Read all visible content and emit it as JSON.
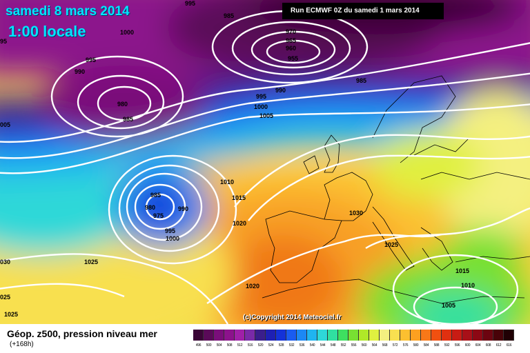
{
  "header": {
    "date": "samedi 8 mars 2014",
    "time": "1:00 locale",
    "run": "Run ECMWF 0Z du samedi 1 mars 2014"
  },
  "footer": {
    "parameter": "Géop. z500, pression niveau mer",
    "lead": "(+168h)",
    "copyright": "(c)Copyright 2014 Meteociel.fr"
  },
  "scale": [
    {
      "label": "496",
      "color": "#3a0536"
    },
    {
      "label": "500",
      "color": "#5a0a58"
    },
    {
      "label": "504",
      "color": "#7a0e7a"
    },
    {
      "label": "508",
      "color": "#8c128c"
    },
    {
      "label": "512",
      "color": "#a020a8"
    },
    {
      "label": "516",
      "color": "#7a2aa8"
    },
    {
      "label": "520",
      "color": "#3a1e8c"
    },
    {
      "label": "524",
      "color": "#1e20b4"
    },
    {
      "label": "528",
      "color": "#1432d8"
    },
    {
      "label": "532",
      "color": "#1a5cf0"
    },
    {
      "label": "536",
      "color": "#1c88f4"
    },
    {
      "label": "540",
      "color": "#20b4f0"
    },
    {
      "label": "544",
      "color": "#2ed8d8"
    },
    {
      "label": "548",
      "color": "#30e0a0"
    },
    {
      "label": "552",
      "color": "#3ee060"
    },
    {
      "label": "556",
      "color": "#78e032"
    },
    {
      "label": "560",
      "color": "#b0e828"
    },
    {
      "label": "564",
      "color": "#e0f040"
    },
    {
      "label": "568",
      "color": "#f4f080"
    },
    {
      "label": "572",
      "color": "#f8e050"
    },
    {
      "label": "576",
      "color": "#fcc030"
    },
    {
      "label": "580",
      "color": "#fca020"
    },
    {
      "label": "584",
      "color": "#f87818"
    },
    {
      "label": "588",
      "color": "#f05010"
    },
    {
      "label": "592",
      "color": "#e03010"
    },
    {
      "label": "596",
      "color": "#c81c14"
    },
    {
      "label": "600",
      "color": "#a81018"
    },
    {
      "label": "604",
      "color": "#8c0814"
    },
    {
      "label": "608",
      "color": "#6c0410"
    },
    {
      "label": "612",
      "color": "#480208"
    },
    {
      "label": "616",
      "color": "#200004"
    }
  ],
  "map_labels": [
    {
      "id": "995-top",
      "text": "995"
    },
    {
      "id": "985-nw",
      "text": "985"
    },
    {
      "id": "1000-nw",
      "text": "1000"
    },
    {
      "id": "995-w",
      "text": "995"
    },
    {
      "id": "990-w",
      "text": "990"
    },
    {
      "id": "95-edge",
      "text": "95"
    },
    {
      "id": "980-low",
      "text": "980"
    },
    {
      "id": "985-low",
      "text": "985"
    },
    {
      "id": "005-edge",
      "text": "005"
    },
    {
      "id": "970",
      "text": "970"
    },
    {
      "id": "965",
      "text": "965"
    },
    {
      "id": "960",
      "text": "960"
    },
    {
      "id": "955",
      "text": "955"
    },
    {
      "id": "985-ne",
      "text": "985"
    },
    {
      "id": "990-c",
      "text": "990"
    },
    {
      "id": "995-c",
      "text": "995"
    },
    {
      "id": "1000-c",
      "text": "1000"
    },
    {
      "id": "1005-c",
      "text": "1005"
    },
    {
      "id": "985-atl",
      "text": "985"
    },
    {
      "id": "980-atl",
      "text": "980"
    },
    {
      "id": "975-atl",
      "text": "975"
    },
    {
      "id": "990-atl",
      "text": "990"
    },
    {
      "id": "995-atl",
      "text": "995"
    },
    {
      "id": "1000-atl",
      "text": "1000"
    },
    {
      "id": "1010",
      "text": "1010"
    },
    {
      "id": "1015",
      "text": "1015"
    },
    {
      "id": "1020-a",
      "text": "1020"
    },
    {
      "id": "1030",
      "text": "1030"
    },
    {
      "id": "030-edge",
      "text": "030"
    },
    {
      "id": "1025-w",
      "text": "1025"
    },
    {
      "id": "025-edge",
      "text": "025"
    },
    {
      "id": "1025-sw",
      "text": "1025"
    },
    {
      "id": "1020-s",
      "text": "1020"
    },
    {
      "id": "1025-e",
      "text": "1025"
    },
    {
      "id": "1015-e",
      "text": "1015"
    },
    {
      "id": "1010-e",
      "text": "1010"
    },
    {
      "id": "1005-e",
      "text": "1005"
    }
  ],
  "colors": {
    "land_line": "#000000",
    "isobar": "#ffffff"
  }
}
